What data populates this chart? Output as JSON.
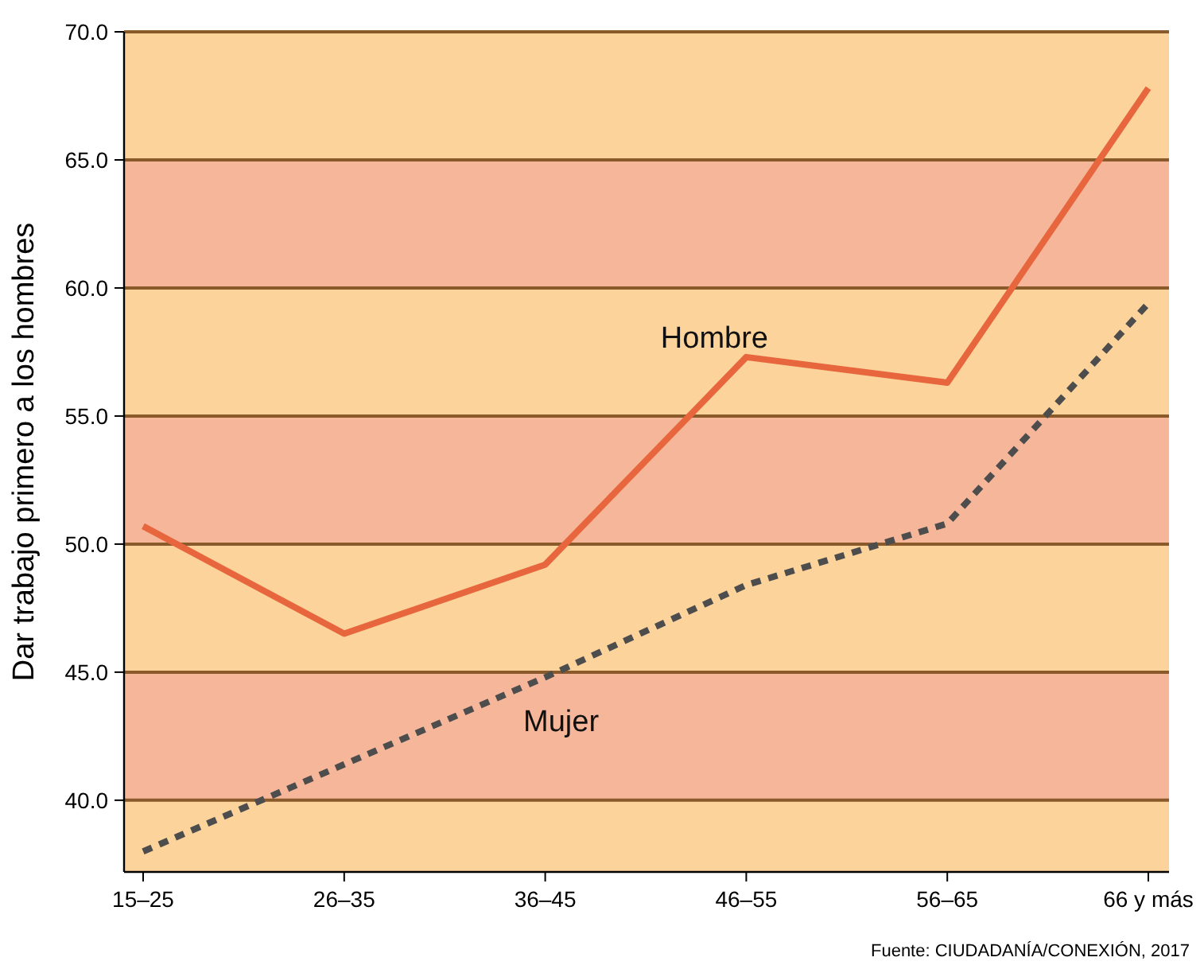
{
  "chart_data": {
    "type": "line",
    "ylabel": "Dar trabajo primero a los hombres",
    "categories": [
      "15–25",
      "26–35",
      "36–45",
      "46–55",
      "56–65",
      "66 y más"
    ],
    "series": [
      {
        "name": "Hombre",
        "color": "#e8663d",
        "line_style": "solid",
        "values": [
          50.7,
          46.5,
          49.2,
          57.3,
          56.3,
          67.8
        ]
      },
      {
        "name": "Mujer",
        "color": "#4d4d4d",
        "line_style": "dashed",
        "values": [
          38.0,
          41.4,
          44.8,
          48.4,
          50.8,
          59.4
        ]
      }
    ],
    "ylim": [
      37.2,
      70
    ],
    "yticks": [
      {
        "value": 40,
        "label": "40.0"
      },
      {
        "value": 45,
        "label": "45.0"
      },
      {
        "value": 50,
        "label": "50.0"
      },
      {
        "value": 55,
        "label": "55.0"
      },
      {
        "value": 60,
        "label": "60.0"
      },
      {
        "value": 65,
        "label": "65.0"
      },
      {
        "value": 70,
        "label": "70.0"
      }
    ],
    "grid": "y",
    "bands": [
      {
        "axis": "y",
        "from": 37.2,
        "to": 40,
        "color": "#fcd39b"
      },
      {
        "axis": "y",
        "from": 40,
        "to": 45,
        "color": "#f6b69a"
      },
      {
        "axis": "y",
        "from": 45,
        "to": 50,
        "color": "#fcd39b"
      },
      {
        "axis": "y",
        "from": 50,
        "to": 55,
        "color": "#f6b69a"
      },
      {
        "axis": "y",
        "from": 55,
        "to": 60,
        "color": "#fcd39b"
      },
      {
        "axis": "y",
        "from": 60,
        "to": 65,
        "color": "#f6b69a"
      },
      {
        "axis": "y",
        "from": 65,
        "to": 70,
        "color": "#fcd39b"
      }
    ],
    "annotations": [
      "Fuente: CIUDADANÍA/CONEXIÓN, 2017"
    ]
  }
}
